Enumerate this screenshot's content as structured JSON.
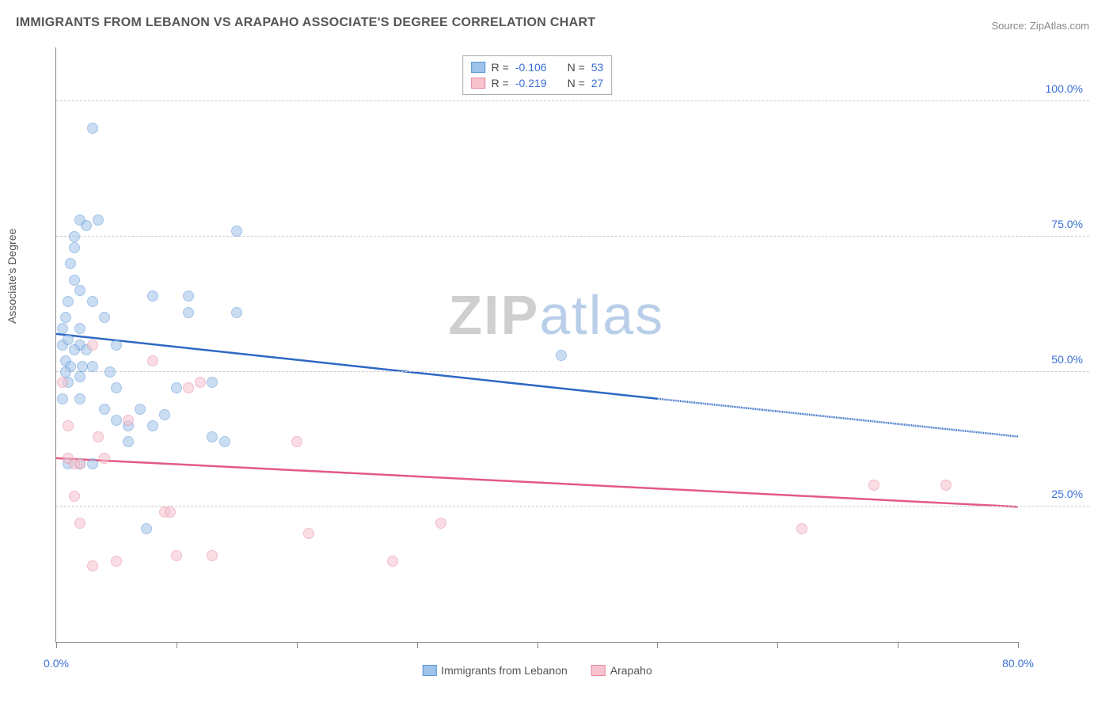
{
  "title": "IMMIGRANTS FROM LEBANON VS ARAPAHO ASSOCIATE'S DEGREE CORRELATION CHART",
  "source_label": "Source: ZipAtlas.com",
  "watermark_a": "ZIP",
  "watermark_b": "atlas",
  "y_axis_label": "Associate's Degree",
  "chart": {
    "type": "scatter",
    "background_color": "#ffffff",
    "grid_color": "#cccccc",
    "axis_color": "#888888",
    "tick_label_color": "#3b6fd6",
    "xlim": [
      0,
      80
    ],
    "ylim": [
      0,
      110
    ],
    "x_ticks": [
      0,
      10,
      20,
      30,
      40,
      50,
      60,
      70,
      80
    ],
    "x_tick_labels": {
      "0": "0.0%",
      "80": "80.0%"
    },
    "y_gridlines": [
      25,
      50,
      75,
      100
    ],
    "y_tick_labels": {
      "25": "25.0%",
      "50": "50.0%",
      "75": "75.0%",
      "100": "100.0%"
    },
    "marker_radius": 7,
    "marker_opacity": 0.55,
    "marker_border_width": 1.2,
    "line_width": 2.5,
    "series": [
      {
        "name": "Immigrants from Lebanon",
        "fill_color": "#9fc3ea",
        "stroke_color": "#5a95d6",
        "line_color": "#2e68c4",
        "r_value": "-0.106",
        "n_value": "53",
        "trend": {
          "x1": 0,
          "y1": 57,
          "x2_solid": 50,
          "y2_solid": 45,
          "x2": 80,
          "y2": 38
        },
        "points": [
          [
            0.5,
            55
          ],
          [
            0.5,
            58
          ],
          [
            0.8,
            60
          ],
          [
            0.8,
            52
          ],
          [
            1,
            56
          ],
          [
            1,
            63
          ],
          [
            1,
            48
          ],
          [
            1.2,
            70
          ],
          [
            1.5,
            73
          ],
          [
            1.5,
            75
          ],
          [
            1.5,
            67
          ],
          [
            2,
            78
          ],
          [
            2,
            65
          ],
          [
            2,
            55
          ],
          [
            2,
            58
          ],
          [
            2,
            49
          ],
          [
            2,
            45
          ],
          [
            2.5,
            77
          ],
          [
            3,
            95
          ],
          [
            3,
            63
          ],
          [
            3,
            51
          ],
          [
            3.5,
            78
          ],
          [
            4,
            43
          ],
          [
            4,
            60
          ],
          [
            5,
            41
          ],
          [
            5,
            47
          ],
          [
            5,
            55
          ],
          [
            6,
            40
          ],
          [
            6,
            37
          ],
          [
            7,
            43
          ],
          [
            7.5,
            21
          ],
          [
            8,
            64
          ],
          [
            8,
            40
          ],
          [
            9,
            42
          ],
          [
            10,
            47
          ],
          [
            11,
            64
          ],
          [
            11,
            61
          ],
          [
            13,
            48
          ],
          [
            13,
            38
          ],
          [
            14,
            37
          ],
          [
            15,
            76
          ],
          [
            15,
            61
          ],
          [
            1,
            33
          ],
          [
            2,
            33
          ],
          [
            3,
            33
          ],
          [
            42,
            53
          ],
          [
            0.5,
            45
          ],
          [
            1.2,
            51
          ],
          [
            1.5,
            54
          ],
          [
            2.2,
            51
          ],
          [
            2.5,
            54
          ],
          [
            4.5,
            50
          ],
          [
            0.8,
            50
          ]
        ]
      },
      {
        "name": "Arapaho",
        "fill_color": "#f6c3cf",
        "stroke_color": "#e886a0",
        "line_color": "#e35a82",
        "r_value": "-0.219",
        "n_value": "27",
        "trend": {
          "x1": 0,
          "y1": 34,
          "x2_solid": 80,
          "y2_solid": 25,
          "x2": 80,
          "y2": 25
        },
        "points": [
          [
            0.5,
            48
          ],
          [
            1,
            40
          ],
          [
            1,
            34
          ],
          [
            1.5,
            33
          ],
          [
            1.5,
            27
          ],
          [
            2,
            33
          ],
          [
            2,
            22
          ],
          [
            3,
            55
          ],
          [
            3,
            14
          ],
          [
            4,
            34
          ],
          [
            5,
            15
          ],
          [
            6,
            41
          ],
          [
            8,
            52
          ],
          [
            9,
            24
          ],
          [
            9.5,
            24
          ],
          [
            10,
            16
          ],
          [
            11,
            47
          ],
          [
            12,
            48
          ],
          [
            13,
            16
          ],
          [
            20,
            37
          ],
          [
            21,
            20
          ],
          [
            28,
            15
          ],
          [
            32,
            22
          ],
          [
            62,
            21
          ],
          [
            68,
            29
          ],
          [
            74,
            29
          ],
          [
            3.5,
            38
          ]
        ]
      }
    ]
  },
  "legend_top": {
    "r_label": "R =",
    "n_label": "N ="
  },
  "legend_bottom": {
    "label_a": "Immigrants from Lebanon",
    "label_b": "Arapaho"
  }
}
